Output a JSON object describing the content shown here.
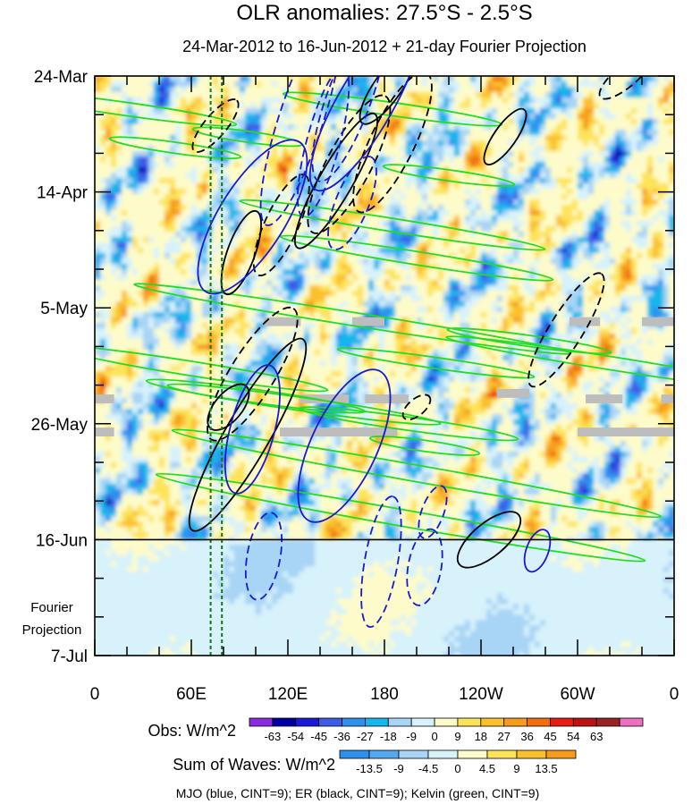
{
  "chart_data": {
    "type": "heatmap",
    "title": "OLR anomalies: 27.5°S - 2.5°S",
    "subtitle": "24-Mar-2012 to 16-Jun-2012 + 21-day Fourier Projection",
    "x_ticks": [
      "0",
      "60E",
      "120E",
      "180",
      "120W",
      "60W",
      "0"
    ],
    "x_tick_lon": [
      0,
      60,
      120,
      180,
      240,
      300,
      360
    ],
    "y_ticks": [
      "24-Mar",
      "14-Apr",
      "5-May",
      "26-May",
      "16-Jun",
      "7-Jul"
    ],
    "y_tick_day": [
      0,
      21,
      42,
      63,
      84,
      105
    ],
    "projection_label": [
      "Fourier",
      "Projection"
    ],
    "projection_start_day": 84,
    "reference_longitudes": [
      72,
      79
    ],
    "obs_colorbar": {
      "label": "Obs: W/m^2",
      "levels": [
        "-63",
        "-54",
        "-45",
        "-36",
        "-27",
        "-18",
        "-9",
        "0",
        "9",
        "18",
        "27",
        "36",
        "45",
        "54",
        "63"
      ],
      "colors": [
        "#8a2be2",
        "#0000a0",
        "#1a1ad4",
        "#3d5ce6",
        "#2f8fef",
        "#16b6ec",
        "#a8d4f5",
        "#d7f2fb",
        "#fdfbc9",
        "#fde35a",
        "#fbc02d",
        "#f79b1c",
        "#f26f0e",
        "#e41e12",
        "#bb1212",
        "#9a2222",
        "#ee6fbf"
      ]
    },
    "waves_colorbar": {
      "label": "Sum of Waves: W/m^2",
      "levels": [
        "-13.5",
        "-9",
        "-4.5",
        "0",
        "4.5",
        "9",
        "13.5"
      ],
      "colors": [
        "#2f8fef",
        "#52a9f0",
        "#a8d4f5",
        "#d7f2fb",
        "#fdfbc9",
        "#fde35a",
        "#fbc02d",
        "#f79b1c"
      ]
    },
    "footer": "MJO (blue, CINT=9); ER (black, CINT=9); Kelvin (green, CINT=9)",
    "xlim": [
      0,
      360
    ],
    "ylim_days": [
      0,
      105
    ],
    "missing_bars": [
      {
        "lon0": 0,
        "lon1": 12,
        "day": 58.5
      },
      {
        "lon0": 0,
        "lon1": 12,
        "day": 64.5
      },
      {
        "lon0": 105,
        "lon1": 128,
        "day": 44.5
      },
      {
        "lon0": 128,
        "lon1": 158,
        "day": 58.5
      },
      {
        "lon0": 115,
        "lon1": 188,
        "day": 64.5
      },
      {
        "lon0": 160,
        "lon1": 180,
        "day": 44.5
      },
      {
        "lon0": 168,
        "lon1": 195,
        "day": 58.5
      },
      {
        "lon0": 250,
        "lon1": 270,
        "day": 57.5
      },
      {
        "lon0": 295,
        "lon1": 314,
        "day": 44.5
      },
      {
        "lon0": 305,
        "lon1": 328,
        "day": 58.5
      },
      {
        "lon0": 300,
        "lon1": 360,
        "day": 64.5
      },
      {
        "lon0": 340,
        "lon1": 360,
        "day": 44.5
      },
      {
        "lon0": 352,
        "lon1": 360,
        "day": 58.5
      }
    ],
    "mjo_contours": [
      {
        "lon": 98,
        "day": 25.5,
        "a": 16,
        "b": 6,
        "ang": 58,
        "dash": false
      },
      {
        "lon": 98,
        "day": 64,
        "a": 12,
        "b": 4,
        "ang": 75,
        "dash": false
      },
      {
        "lon": 155,
        "day": 67,
        "a": 15,
        "b": 6,
        "ang": 65,
        "dash": false
      },
      {
        "lon": 168,
        "day": 5,
        "a": 18,
        "b": 5,
        "ang": 60,
        "dash": false
      },
      {
        "lon": 128,
        "day": 8,
        "a": 20,
        "b": 4,
        "ang": 72,
        "dash": true
      },
      {
        "lon": 158,
        "day": 4,
        "a": 16,
        "b": 4,
        "ang": 70,
        "dash": true
      },
      {
        "lon": 142,
        "day": 12,
        "a": 14,
        "b": 3,
        "ang": 75,
        "dash": true
      },
      {
        "lon": 160,
        "day": 23,
        "a": 9,
        "b": 3,
        "ang": 68,
        "dash": true
      },
      {
        "lon": 178,
        "day": 88,
        "a": 12,
        "b": 3,
        "ang": 80,
        "dash": true
      },
      {
        "lon": 210,
        "day": 79,
        "a": 5,
        "b": 2,
        "ang": 70,
        "dash": true
      },
      {
        "lon": 105,
        "day": 87,
        "a": 8,
        "b": 3,
        "ang": 80,
        "dash": true
      },
      {
        "lon": 205,
        "day": 89,
        "a": 7,
        "b": 3,
        "ang": 80,
        "dash": true
      },
      {
        "lon": 275,
        "day": 86,
        "a": 4,
        "b": 2,
        "ang": 70,
        "dash": false
      }
    ],
    "er_contours": [
      {
        "lon": 91,
        "day": 32,
        "a": 8,
        "b": 2.5,
        "ang": 70,
        "dash": false
      },
      {
        "lon": 83,
        "day": 60,
        "a": 5,
        "b": 2.5,
        "ang": 50,
        "dash": false
      },
      {
        "lon": 95,
        "day": 65,
        "a": 20,
        "b": 4,
        "ang": 60,
        "dash": false
      },
      {
        "lon": 150,
        "day": 19,
        "a": 14,
        "b": 3,
        "ang": 60,
        "dash": false
      },
      {
        "lon": 182,
        "day": 2,
        "a": 8,
        "b": 2.5,
        "ang": 55,
        "dash": false
      },
      {
        "lon": 255,
        "day": 11,
        "a": 6,
        "b": 2,
        "ang": 55,
        "dash": false
      },
      {
        "lon": 245,
        "day": 84,
        "a": 7,
        "b": 3,
        "ang": 40,
        "dash": false
      },
      {
        "lon": 75,
        "day": 9,
        "a": 6,
        "b": 2,
        "ang": 50,
        "dash": true
      },
      {
        "lon": 98,
        "day": 54,
        "a": 14,
        "b": 4,
        "ang": 58,
        "dash": true
      },
      {
        "lon": 116,
        "day": 27,
        "a": 10,
        "b": 3,
        "ang": 65,
        "dash": true
      },
      {
        "lon": 158,
        "day": 16,
        "a": 14,
        "b": 4,
        "ang": 62,
        "dash": true
      },
      {
        "lon": 185,
        "day": 12,
        "a": 14,
        "b": 4,
        "ang": 64,
        "dash": true
      },
      {
        "lon": 293,
        "day": 46,
        "a": 12,
        "b": 3,
        "ang": 58,
        "dash": true
      },
      {
        "lon": 330,
        "day": 0,
        "a": 6,
        "b": 2,
        "ang": 40,
        "dash": true
      },
      {
        "lon": 200,
        "day": 60,
        "a": 3,
        "b": 1.5,
        "ang": 40,
        "dash": true
      }
    ],
    "kelvin_contours": [
      {
        "lon": 20,
        "day": 6,
        "a": 20,
        "b": 1.2,
        "ang": -8
      },
      {
        "lon": 50,
        "day": 13,
        "a": 12,
        "b": 1,
        "ang": -8
      },
      {
        "lon": 95,
        "day": 11,
        "a": 10,
        "b": 1,
        "ang": -8
      },
      {
        "lon": 185,
        "day": 6,
        "a": 20,
        "b": 1.2,
        "ang": -8
      },
      {
        "lon": 220,
        "day": 18,
        "a": 12,
        "b": 1,
        "ang": -8
      },
      {
        "lon": 185,
        "day": 27,
        "a": 28,
        "b": 1.2,
        "ang": -9
      },
      {
        "lon": 200,
        "day": 33,
        "a": 25,
        "b": 1.2,
        "ang": -9
      },
      {
        "lon": 160,
        "day": 44,
        "a": 40,
        "b": 1.2,
        "ang": -9
      },
      {
        "lon": 212,
        "day": 52,
        "a": 18,
        "b": 1,
        "ang": -8
      },
      {
        "lon": 320,
        "day": 52,
        "a": 30,
        "b": 1.2,
        "ang": -9
      },
      {
        "lon": 60,
        "day": 53,
        "a": 25,
        "b": 1.3,
        "ang": -9
      },
      {
        "lon": 100,
        "day": 58,
        "a": 20,
        "b": 1.2,
        "ang": -8
      },
      {
        "lon": 130,
        "day": 59.5,
        "a": 25,
        "b": 1.2,
        "ang": -8
      },
      {
        "lon": 195,
        "day": 63,
        "a": 20,
        "b": 1.2,
        "ang": -8
      },
      {
        "lon": 200,
        "day": 72,
        "a": 45,
        "b": 1.5,
        "ang": -10
      },
      {
        "lon": 190,
        "day": 80,
        "a": 45,
        "b": 1.5,
        "ang": -10
      },
      {
        "lon": 205,
        "day": 67,
        "a": 10,
        "b": 1,
        "ang": -8
      },
      {
        "lon": 270,
        "day": 48,
        "a": 15,
        "b": 1,
        "ang": -8
      }
    ]
  }
}
